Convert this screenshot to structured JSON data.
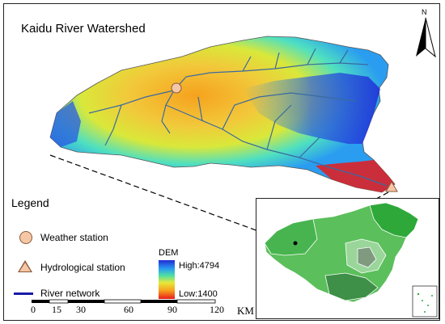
{
  "map": {
    "title": "Kaidu River Watershed",
    "north_label": "N"
  },
  "legend": {
    "title": "Legend",
    "weather_station": "Weather station",
    "hydrological_station": "Hydrological station",
    "river_network": "River network",
    "dem_title": "DEM",
    "dem_high": "High:4794",
    "dem_low": "Low:1400",
    "dem_colors": [
      "#1f2bd6",
      "#2a9df0",
      "#4fe0a0",
      "#e8e83a",
      "#f6a21e",
      "#e81b1b"
    ]
  },
  "scale": {
    "ticks": [
      "0",
      "15",
      "30",
      "60",
      "90",
      "120"
    ],
    "unit": "KM"
  },
  "colors": {
    "river": "#3a6aa0",
    "legend_river": "#1a1aa8",
    "station_fill": "#f6c7a6",
    "station_stroke": "#8a5a3a",
    "inset_highlight": "#1f9a3a"
  }
}
